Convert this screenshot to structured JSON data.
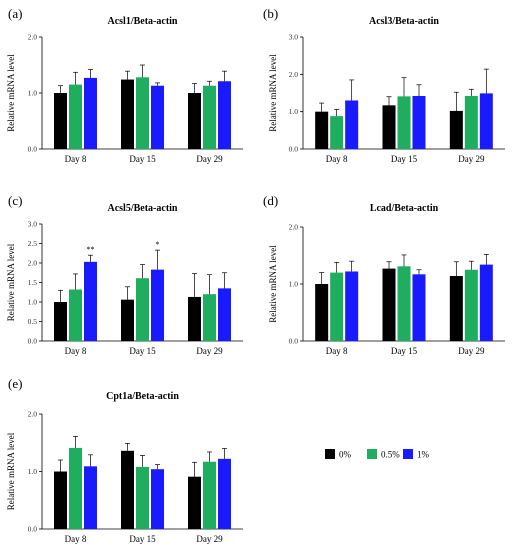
{
  "chart_data": [
    {
      "panel": "(a)",
      "type": "bar",
      "title": "Acsl1/Beta-actin",
      "ylabel": "Relative mRNA level",
      "ylim": [
        0,
        2.0
      ],
      "yticks": [
        "0.0",
        "1.0",
        "2.0"
      ],
      "categories": [
        "Day 8",
        "Day 15",
        "Day 29"
      ],
      "series": [
        {
          "name": "0%",
          "values": [
            1.0,
            1.24,
            1.0
          ],
          "errors": [
            0.13,
            0.15,
            0.17
          ]
        },
        {
          "name": "0.5%",
          "values": [
            1.15,
            1.28,
            1.13
          ],
          "errors": [
            0.22,
            0.22,
            0.08
          ]
        },
        {
          "name": "1%",
          "values": [
            1.27,
            1.13,
            1.21
          ],
          "errors": [
            0.15,
            0.05,
            0.18
          ]
        }
      ],
      "annotations": []
    },
    {
      "panel": "(b)",
      "type": "bar",
      "title": "Acsl3/Beta-actin",
      "ylabel": "Relative mRNA level",
      "ylim": [
        0,
        3.0
      ],
      "yticks": [
        "0.0",
        "1.0",
        "2.0",
        "3.0"
      ],
      "categories": [
        "Day 8",
        "Day 15",
        "Day 29"
      ],
      "series": [
        {
          "name": "0%",
          "values": [
            1.0,
            1.17,
            1.02
          ],
          "errors": [
            0.23,
            0.23,
            0.5
          ]
        },
        {
          "name": "0.5%",
          "values": [
            0.88,
            1.41,
            1.42
          ],
          "errors": [
            0.18,
            0.5,
            0.18
          ]
        },
        {
          "name": "1%",
          "values": [
            1.3,
            1.42,
            1.49
          ],
          "errors": [
            0.55,
            0.3,
            0.65
          ]
        }
      ],
      "annotations": []
    },
    {
      "panel": "(c)",
      "type": "bar",
      "title": "Acsl5/Beta-actin",
      "ylabel": "Relative mRNA level",
      "ylim": [
        0,
        3.0
      ],
      "yticks": [
        "0.0",
        "0.5",
        "1.0",
        "1.5",
        "2.0",
        "2.5",
        "3.0"
      ],
      "categories": [
        "Day 8",
        "Day 15",
        "Day 29"
      ],
      "series": [
        {
          "name": "0%",
          "values": [
            1.0,
            1.06,
            1.13
          ],
          "errors": [
            0.3,
            0.33,
            0.6
          ]
        },
        {
          "name": "0.5%",
          "values": [
            1.32,
            1.61,
            1.2
          ],
          "errors": [
            0.4,
            0.35,
            0.5
          ]
        },
        {
          "name": "1%",
          "values": [
            2.03,
            1.83,
            1.35
          ],
          "errors": [
            0.17,
            0.5,
            0.4
          ]
        }
      ],
      "annotations": [
        {
          "category": "Day 8",
          "series": "1%",
          "text": "**"
        },
        {
          "category": "Day 15",
          "series": "1%",
          "text": "*"
        }
      ]
    },
    {
      "panel": "(d)",
      "type": "bar",
      "title": "Lcad/Beta-actin",
      "ylabel": "Relative mRNA level",
      "ylim": [
        0,
        2.0
      ],
      "yticks": [
        "0.0",
        "1.0",
        "2.0"
      ],
      "categories": [
        "Day 8",
        "Day 15",
        "Day 29"
      ],
      "series": [
        {
          "name": "0%",
          "values": [
            1.0,
            1.27,
            1.14
          ],
          "errors": [
            0.2,
            0.12,
            0.25
          ]
        },
        {
          "name": "0.5%",
          "values": [
            1.2,
            1.31,
            1.25
          ],
          "errors": [
            0.18,
            0.2,
            0.15
          ]
        },
        {
          "name": "1%",
          "values": [
            1.22,
            1.17,
            1.34
          ],
          "errors": [
            0.18,
            0.08,
            0.18
          ]
        }
      ],
      "annotations": []
    },
    {
      "panel": "(e)",
      "type": "bar",
      "title": "Cpt1a/Beta-actin",
      "ylabel": "Relative mRNA level",
      "ylim": [
        0,
        2.0
      ],
      "yticks": [
        "0.0",
        "1.0",
        "2.0"
      ],
      "categories": [
        "Day 8",
        "Day 15",
        "Day 29"
      ],
      "series": [
        {
          "name": "0%",
          "values": [
            1.0,
            1.36,
            0.91
          ],
          "errors": [
            0.2,
            0.13,
            0.25
          ]
        },
        {
          "name": "0.5%",
          "values": [
            1.41,
            1.08,
            1.17
          ],
          "errors": [
            0.2,
            0.2,
            0.17
          ]
        },
        {
          "name": "1%",
          "values": [
            1.09,
            1.04,
            1.22
          ],
          "errors": [
            0.2,
            0.08,
            0.18
          ]
        }
      ],
      "annotations": []
    }
  ],
  "legend": [
    {
      "label": "0%",
      "color": "#000000"
    },
    {
      "label": "0.5%",
      "color": "#1fad5f"
    },
    {
      "label": "1%",
      "color": "#1a1aff"
    }
  ]
}
